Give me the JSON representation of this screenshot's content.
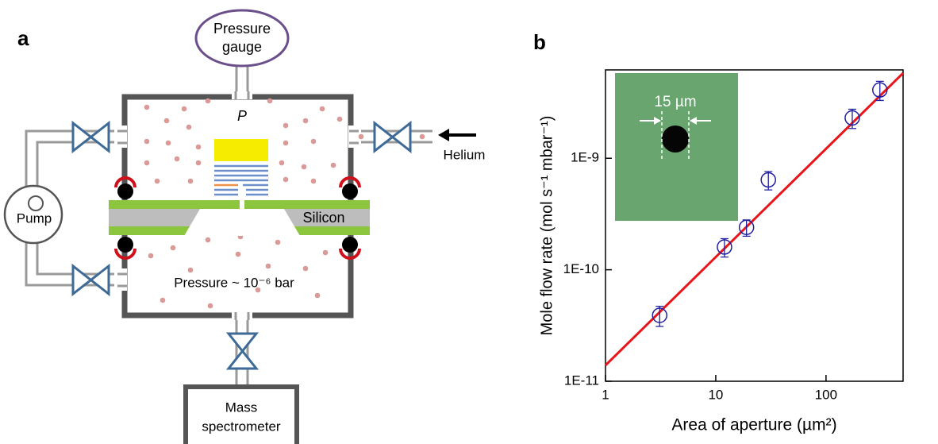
{
  "diagram": {
    "panel_label": "a",
    "gauge": [
      "Pressure",
      "gauge"
    ],
    "pressure_symbol": "P",
    "gas": "Helium",
    "pump": "Pump",
    "membrane": "Silicon",
    "vacuum": "Pressure ~ 10⁻⁶ bar",
    "detector": [
      "Mass",
      "spectrometer"
    ]
  },
  "chart_data": {
    "type": "scatter",
    "panel_label": "b",
    "xlabel": "Area of aperture (µm²)",
    "ylabel": "Mole flow rate (mol s⁻¹ mbar⁻¹)",
    "inset_label": "15 µm",
    "xscale": "log",
    "yscale": "log",
    "xlim": [
      1,
      500
    ],
    "ylim": [
      1e-11,
      6.2e-09
    ],
    "xticks": [
      1,
      10,
      100
    ],
    "yticks": [
      {
        "value": 1e-11,
        "label": "1E-11"
      },
      {
        "value": 1e-10,
        "label": "1E-10"
      },
      {
        "value": 1e-09,
        "label": "1E-9"
      }
    ],
    "series": [
      {
        "color": "#1f1fa0",
        "x": [
          3.1,
          12,
          19,
          30,
          173,
          308
        ],
        "values": [
          3.9e-11,
          1.6e-10,
          2.4e-10,
          6.4e-10,
          2.3e-09,
          4.1e-09
        ],
        "errors": [
          8e-12,
          3e-11,
          4e-11,
          1.2e-10,
          4.5e-10,
          8e-10
        ]
      }
    ],
    "fit_line": {
      "color": "#e8151b",
      "x": [
        1,
        500
      ],
      "values": [
        1.39e-11,
        5.8e-09
      ]
    }
  }
}
